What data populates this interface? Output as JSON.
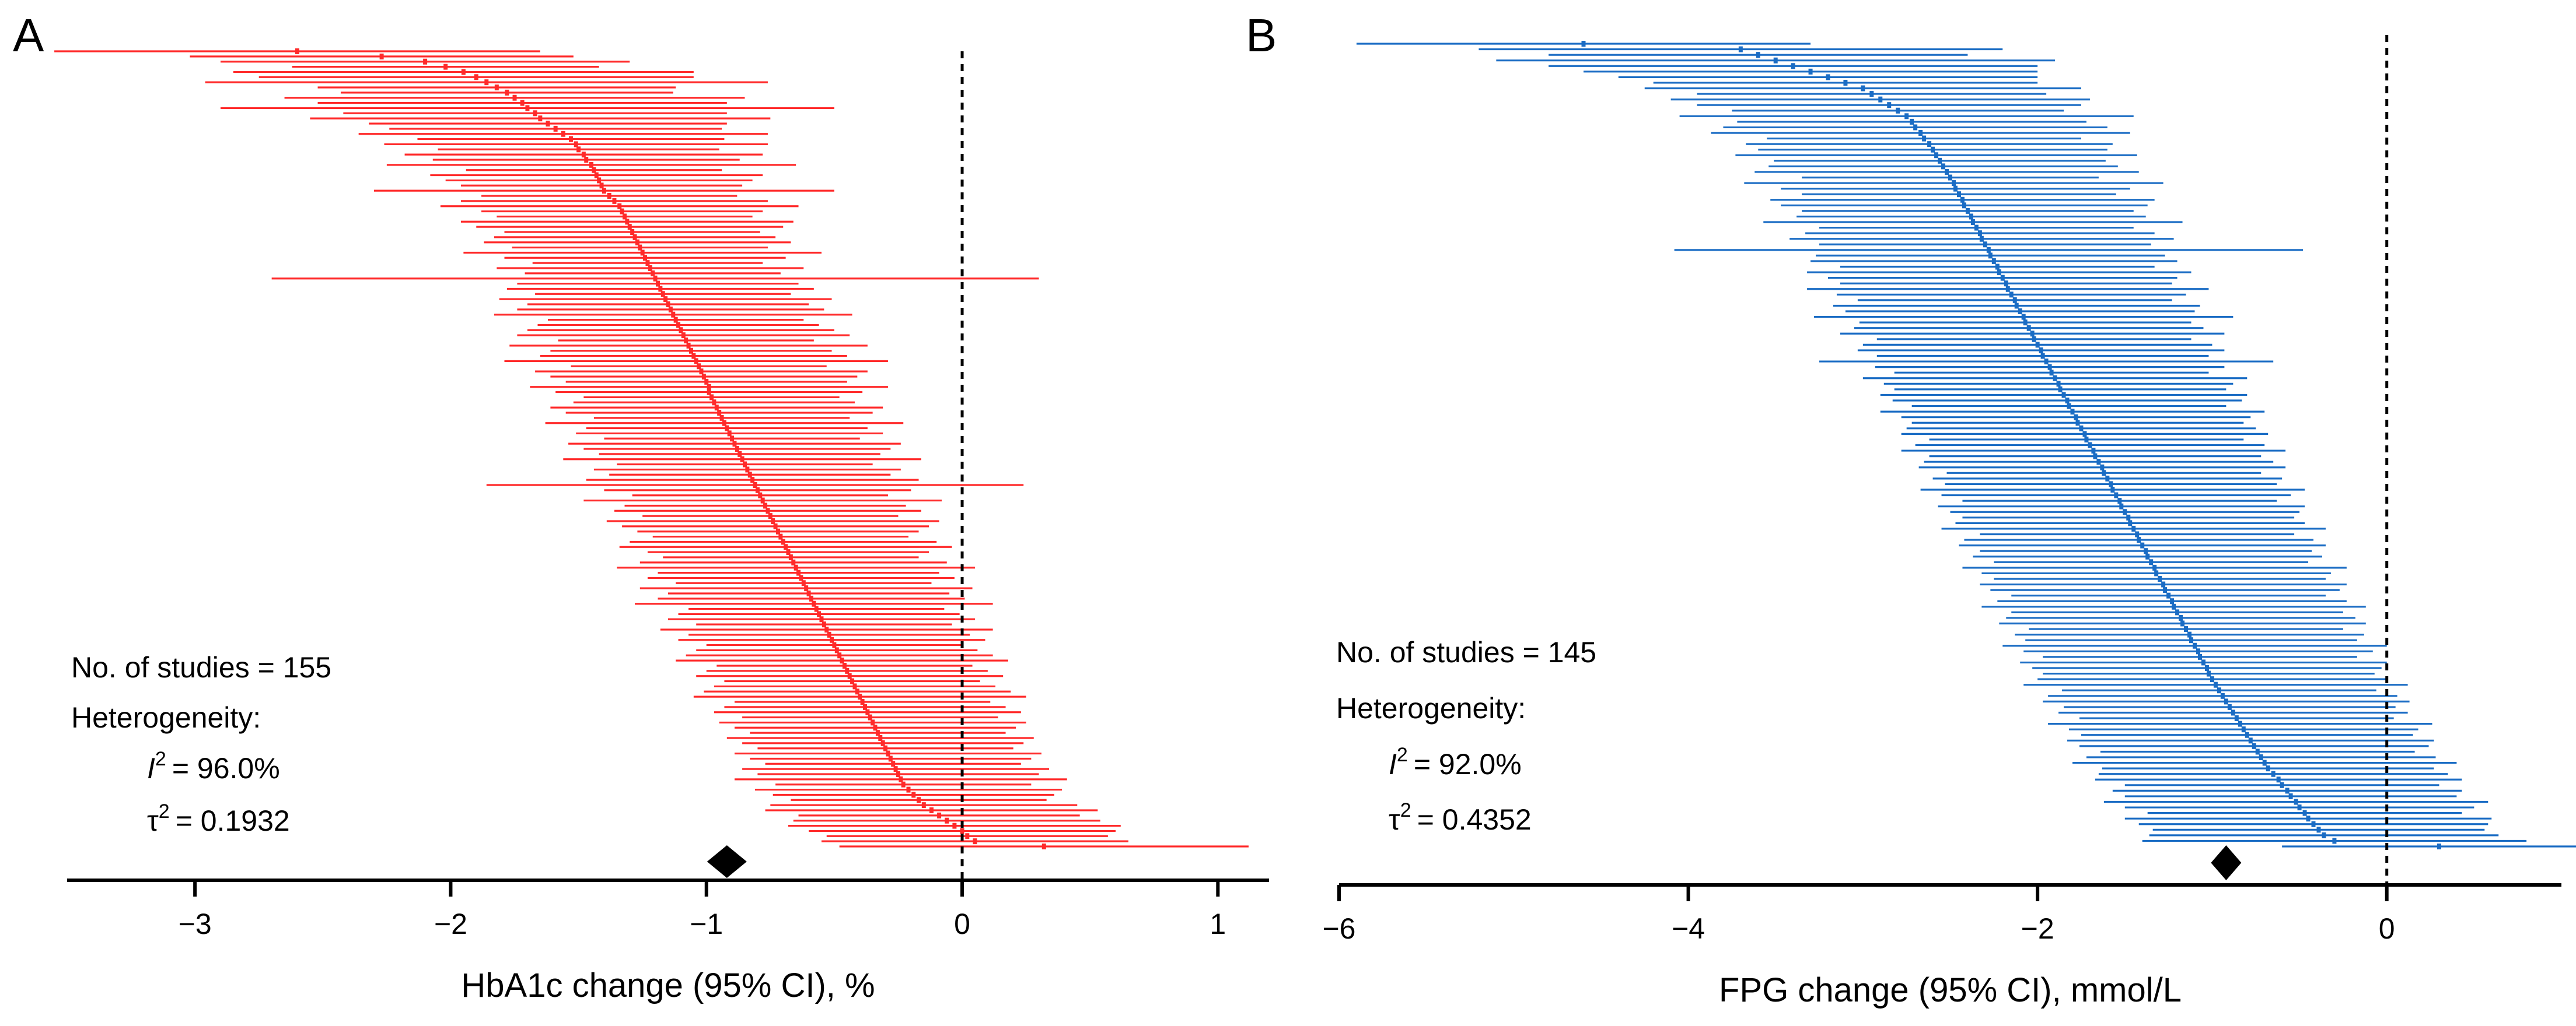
{
  "chart_data": [
    {
      "type": "forest",
      "panel_label": "A",
      "xlabel": "HbA1c change (95% CI), %",
      "xlim": [
        -3.5,
        1.2
      ],
      "xticks": [
        -3,
        -2,
        -1,
        0,
        1
      ],
      "xtick_labels": [
        "−3",
        "−2",
        "−1",
        "0",
        "1"
      ],
      "reference_line": 0,
      "series_color": "#ff2a2a",
      "n_studies_text": "No. of studies = 155",
      "heterogeneity_label": "Heterogeneity:",
      "i2_symbol": "I",
      "i2_value_text": "= 96.0%",
      "tau2_symbol": "τ",
      "tau2_value_text": "= 0.1932",
      "superscript": "2",
      "pooled_estimate": -0.92,
      "pooled_ci": [
        -0.98,
        -0.86
      ],
      "study_estimates": [
        -2.6,
        -2.27,
        -2.1,
        -2.02,
        -1.95,
        -1.9,
        -1.86,
        -1.82,
        -1.78,
        -1.75,
        -1.72,
        -1.7,
        -1.67,
        -1.65,
        -1.62,
        -1.59,
        -1.56,
        -1.53,
        -1.51,
        -1.5,
        -1.48,
        -1.47,
        -1.45,
        -1.44,
        -1.43,
        -1.42,
        -1.41,
        -1.4,
        -1.38,
        -1.36,
        -1.34,
        -1.33,
        -1.32,
        -1.31,
        -1.3,
        -1.29,
        -1.28,
        -1.27,
        -1.26,
        -1.25,
        -1.24,
        -1.23,
        -1.22,
        -1.21,
        -1.2,
        -1.19,
        -1.18,
        -1.17,
        -1.16,
        -1.15,
        -1.14,
        -1.13,
        -1.12,
        -1.11,
        -1.1,
        -1.09,
        -1.08,
        -1.07,
        -1.06,
        -1.05,
        -1.04,
        -1.03,
        -1.02,
        -1.01,
        -1.0,
        -0.99,
        -0.99,
        -0.98,
        -0.97,
        -0.96,
        -0.95,
        -0.94,
        -0.93,
        -0.92,
        -0.91,
        -0.9,
        -0.89,
        -0.88,
        -0.87,
        -0.86,
        -0.85,
        -0.84,
        -0.83,
        -0.82,
        -0.81,
        -0.8,
        -0.79,
        -0.78,
        -0.77,
        -0.76,
        -0.75,
        -0.74,
        -0.73,
        -0.72,
        -0.71,
        -0.7,
        -0.69,
        -0.68,
        -0.67,
        -0.66,
        -0.65,
        -0.64,
        -0.63,
        -0.62,
        -0.61,
        -0.6,
        -0.59,
        -0.58,
        -0.57,
        -0.56,
        -0.55,
        -0.54,
        -0.53,
        -0.52,
        -0.51,
        -0.5,
        -0.49,
        -0.48,
        -0.47,
        -0.46,
        -0.45,
        -0.44,
        -0.43,
        -0.42,
        -0.41,
        -0.4,
        -0.39,
        -0.38,
        -0.37,
        -0.36,
        -0.35,
        -0.34,
        -0.33,
        -0.32,
        -0.31,
        -0.3,
        -0.29,
        -0.28,
        -0.27,
        -0.26,
        -0.25,
        -0.24,
        -0.23,
        -0.21,
        -0.19,
        -0.17,
        -0.15,
        -0.12,
        -0.09,
        -0.06,
        -0.03,
        0.0,
        0.02,
        0.05,
        0.32
      ],
      "study_ci_halfwidths": [
        0.95,
        0.75,
        0.8,
        0.6,
        0.9,
        0.85,
        1.1,
        0.7,
        0.65,
        0.9,
        0.8,
        1.2,
        0.75,
        0.9,
        0.7,
        0.65,
        0.8,
        0.6,
        0.75,
        0.55,
        0.7,
        0.6,
        0.8,
        0.5,
        0.65,
        0.6,
        0.55,
        0.9,
        0.5,
        0.6,
        0.7,
        0.55,
        0.5,
        0.65,
        0.6,
        0.5,
        0.55,
        0.6,
        0.5,
        0.7,
        0.55,
        0.45,
        0.6,
        0.5,
        1.5,
        0.55,
        0.6,
        0.5,
        0.65,
        0.55,
        0.6,
        0.7,
        0.5,
        0.55,
        0.6,
        0.65,
        0.5,
        0.7,
        0.55,
        0.6,
        0.75,
        0.5,
        0.65,
        0.6,
        0.55,
        0.7,
        0.6,
        0.5,
        0.55,
        0.65,
        0.6,
        0.5,
        0.7,
        0.55,
        0.6,
        0.5,
        0.65,
        0.6,
        0.55,
        0.7,
        0.5,
        0.6,
        0.55,
        0.65,
        1.05,
        0.6,
        0.5,
        0.7,
        0.55,
        0.6,
        0.5,
        0.65,
        0.6,
        0.55,
        0.5,
        0.6,
        0.65,
        0.55,
        0.5,
        0.6,
        0.7,
        0.55,
        0.6,
        0.5,
        0.65,
        0.55,
        0.6,
        0.7,
        0.5,
        0.55,
        0.6,
        0.5,
        0.65,
        0.55,
        0.6,
        0.5,
        0.55,
        0.6,
        0.65,
        0.5,
        0.55,
        0.6,
        0.5,
        0.55,
        0.6,
        0.65,
        0.5,
        0.55,
        0.6,
        0.5,
        0.6,
        0.55,
        0.5,
        0.6,
        0.55,
        0.5,
        0.6,
        0.55,
        0.5,
        0.6,
        0.55,
        0.65,
        0.5,
        0.6,
        0.55,
        0.5,
        0.6,
        0.65,
        0.55,
        0.6,
        0.65,
        0.6,
        0.55,
        0.6,
        0.8
      ]
    },
    {
      "type": "forest",
      "panel_label": "B",
      "xlabel": "FPG change (95% CI), mmol/L",
      "xlim": [
        -6.0,
        1.0
      ],
      "xticks": [
        -6,
        -4,
        -2,
        0
      ],
      "xtick_labels": [
        "−6",
        "−4",
        "−2",
        "0"
      ],
      "reference_line": 0,
      "series_color": "#1a6cc4",
      "n_studies_text": "No. of studies = 145",
      "heterogeneity_label": "Heterogeneity:",
      "i2_symbol": "I",
      "i2_value_text": "= 92.0%",
      "tau2_symbol": "τ",
      "tau2_value_text": "= 0.4352",
      "superscript": "2",
      "pooled_estimate": -0.92,
      "pooled_ci": [
        -0.98,
        -0.86
      ],
      "study_estimates": [
        -4.6,
        -3.7,
        -3.6,
        -3.5,
        -3.4,
        -3.3,
        -3.2,
        -3.1,
        -3.0,
        -2.95,
        -2.9,
        -2.85,
        -2.8,
        -2.75,
        -2.72,
        -2.7,
        -2.67,
        -2.65,
        -2.62,
        -2.6,
        -2.58,
        -2.56,
        -2.54,
        -2.52,
        -2.5,
        -2.48,
        -2.47,
        -2.45,
        -2.43,
        -2.42,
        -2.4,
        -2.38,
        -2.37,
        -2.35,
        -2.33,
        -2.32,
        -2.3,
        -2.28,
        -2.27,
        -2.25,
        -2.23,
        -2.22,
        -2.2,
        -2.18,
        -2.17,
        -2.15,
        -2.13,
        -2.12,
        -2.1,
        -2.08,
        -2.07,
        -2.05,
        -2.03,
        -2.02,
        -2.0,
        -1.98,
        -1.97,
        -1.95,
        -1.93,
        -1.92,
        -1.9,
        -1.88,
        -1.87,
        -1.85,
        -1.83,
        -1.82,
        -1.8,
        -1.78,
        -1.77,
        -1.75,
        -1.73,
        -1.72,
        -1.7,
        -1.68,
        -1.67,
        -1.65,
        -1.63,
        -1.62,
        -1.6,
        -1.58,
        -1.57,
        -1.55,
        -1.53,
        -1.52,
        -1.5,
        -1.48,
        -1.47,
        -1.45,
        -1.43,
        -1.42,
        -1.4,
        -1.38,
        -1.37,
        -1.35,
        -1.33,
        -1.32,
        -1.3,
        -1.28,
        -1.27,
        -1.25,
        -1.23,
        -1.22,
        -1.2,
        -1.18,
        -1.17,
        -1.15,
        -1.13,
        -1.12,
        -1.1,
        -1.08,
        -1.07,
        -1.05,
        -1.03,
        -1.02,
        -1.0,
        -0.98,
        -0.96,
        -0.94,
        -0.92,
        -0.9,
        -0.88,
        -0.86,
        -0.84,
        -0.82,
        -0.8,
        -0.78,
        -0.76,
        -0.74,
        -0.72,
        -0.7,
        -0.68,
        -0.65,
        -0.62,
        -0.6,
        -0.57,
        -0.55,
        -0.52,
        -0.5,
        -0.47,
        -0.45,
        -0.42,
        -0.39,
        -0.36,
        -0.3,
        0.3
      ],
      "study_ci_halfwidths": [
        1.3,
        1.5,
        1.2,
        1.6,
        1.4,
        1.3,
        1.2,
        1.1,
        1.25,
        1.0,
        1.2,
        1.1,
        0.95,
        1.3,
        1.0,
        1.1,
        1.2,
        0.9,
        1.05,
        1.0,
        1.15,
        0.95,
        1.0,
        1.1,
        0.85,
        1.2,
        1.0,
        0.9,
        1.1,
        1.05,
        0.95,
        1.0,
        1.2,
        0.9,
        1.0,
        1.1,
        0.95,
        1.8,
        1.0,
        1.05,
        0.9,
        1.1,
        1.0,
        0.95,
        1.15,
        1.0,
        0.9,
        1.05,
        1.0,
        1.2,
        0.95,
        1.0,
        1.1,
        0.9,
        1.0,
        1.05,
        0.95,
        1.3,
        1.0,
        0.9,
        1.1,
        1.0,
        0.95,
        1.05,
        1.0,
        0.9,
        1.1,
        1.0,
        0.95,
        1.0,
        1.05,
        0.9,
        1.0,
        1.1,
        0.95,
        1.0,
        1.05,
        0.9,
        1.0,
        0.95,
        1.1,
        1.0,
        0.9,
        1.05,
        1.0,
        0.95,
        1.0,
        1.1,
        0.9,
        1.0,
        1.05,
        0.95,
        1.0,
        0.9,
        1.1,
        1.0,
        0.95,
        1.05,
        1.0,
        0.9,
        1.0,
        1.1,
        0.95,
        1.0,
        1.05,
        0.9,
        1.0,
        0.95,
        1.1,
        1.0,
        0.9,
        1.05,
        1.0,
        0.95,
        1.0,
        1.1,
        0.9,
        1.0,
        1.05,
        0.95,
        1.0,
        0.9,
        1.1,
        1.0,
        0.95,
        1.05,
        1.0,
        0.9,
        1.0,
        1.1,
        0.95,
        1.0,
        1.05,
        0.9,
        1.0,
        0.95,
        1.1,
        1.0,
        0.9,
        1.05,
        1.0,
        0.95,
        1.0,
        1.1,
        0.9
      ]
    }
  ]
}
